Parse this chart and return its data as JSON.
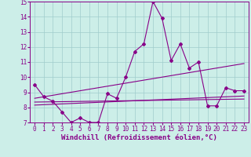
{
  "xlabel": "Windchill (Refroidissement éolien,°C)",
  "bg_color": "#cceee8",
  "grid_color": "#a0cccc",
  "line_color": "#880088",
  "xlim": [
    -0.5,
    23.5
  ],
  "ylim": [
    7,
    15
  ],
  "xticks": [
    0,
    1,
    2,
    3,
    4,
    5,
    6,
    7,
    8,
    9,
    10,
    11,
    12,
    13,
    14,
    15,
    16,
    17,
    18,
    19,
    20,
    21,
    22,
    23
  ],
  "yticks": [
    7,
    8,
    9,
    10,
    11,
    12,
    13,
    14,
    15
  ],
  "line1_x": [
    0,
    1,
    2,
    3,
    4,
    5,
    6,
    7,
    8,
    9,
    10,
    11,
    12,
    13,
    14,
    15,
    16,
    17,
    18,
    19,
    20,
    21,
    22,
    23
  ],
  "line1_y": [
    9.5,
    8.7,
    8.4,
    7.7,
    7.0,
    7.3,
    7.0,
    7.0,
    8.9,
    8.6,
    10.0,
    11.7,
    12.2,
    15.0,
    13.9,
    11.1,
    12.2,
    10.6,
    11.0,
    8.1,
    8.1,
    9.3,
    9.1,
    9.1
  ],
  "line2_x": [
    0,
    23
  ],
  "line2_y": [
    8.6,
    10.9
  ],
  "line3_x": [
    0,
    23
  ],
  "line3_y": [
    8.15,
    8.75
  ],
  "line4_x": [
    0,
    23
  ],
  "line4_y": [
    8.35,
    8.55
  ],
  "markersize": 2.0,
  "linewidth": 0.8,
  "xlabel_fontsize": 6.5,
  "tick_fontsize": 5.5
}
